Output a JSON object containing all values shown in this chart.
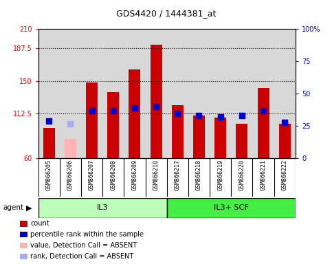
{
  "title": "GDS4420 / 1444381_at",
  "samples": [
    "GSM866205",
    "GSM866206",
    "GSM866207",
    "GSM866208",
    "GSM866209",
    "GSM866210",
    "GSM866217",
    "GSM866218",
    "GSM866219",
    "GSM866220",
    "GSM866221",
    "GSM866222"
  ],
  "bar_values": [
    95,
    83,
    148,
    137,
    163,
    192,
    122,
    110,
    107,
    100,
    142,
    100
  ],
  "bar_colors": [
    "#cc0000",
    "#ffb3b3",
    "#cc0000",
    "#cc0000",
    "#cc0000",
    "#cc0000",
    "#cc0000",
    "#cc0000",
    "#cc0000",
    "#cc0000",
    "#cc0000",
    "#cc0000"
  ],
  "rank_values": [
    29,
    27,
    37,
    37,
    39,
    40,
    35,
    33,
    32,
    33,
    37,
    28
  ],
  "rank_colors": [
    "#0000cc",
    "#aaaaee",
    "#0000cc",
    "#0000cc",
    "#0000cc",
    "#0000cc",
    "#0000cc",
    "#0000cc",
    "#0000cc",
    "#0000cc",
    "#0000cc",
    "#0000cc"
  ],
  "absent_flags": [
    false,
    true,
    false,
    false,
    false,
    false,
    false,
    false,
    false,
    false,
    false,
    false
  ],
  "ylim_left": [
    60,
    210
  ],
  "ylim_right": [
    0,
    100
  ],
  "yticks_left": [
    60,
    112.5,
    150,
    187.5,
    210
  ],
  "ytick_labels_left": [
    "60",
    "112.5",
    "150",
    "187.5",
    "210"
  ],
  "yticks_right": [
    0,
    25,
    50,
    75,
    100
  ],
  "ytick_labels_right": [
    "0",
    "25",
    "50",
    "75",
    "100%"
  ],
  "hlines": [
    112.5,
    150,
    187.5
  ],
  "group1_label": "IL3",
  "group2_label": "IL3+ SCF",
  "group1_color": "#bbffbb",
  "group2_color": "#44ee44",
  "agent_label": "agent",
  "legend_items": [
    {
      "color": "#cc0000",
      "label": "count"
    },
    {
      "color": "#0000cc",
      "label": "percentile rank within the sample"
    },
    {
      "color": "#ffb3b3",
      "label": "value, Detection Call = ABSENT"
    },
    {
      "color": "#aaaaee",
      "label": "rank, Detection Call = ABSENT"
    }
  ],
  "bar_width": 0.55,
  "background_color": "#ffffff",
  "plot_bg_color": "#d8d8d8",
  "title_fontsize": 9
}
